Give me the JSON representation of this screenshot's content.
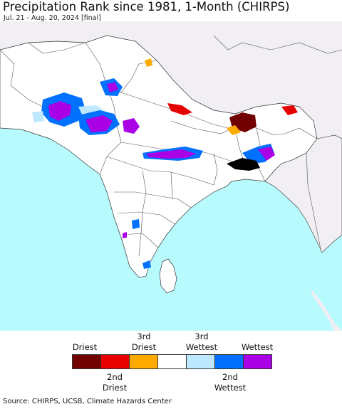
{
  "title": "Precipitation Rank since 1981, 1-Month (CHIRPS)",
  "subtitle": "Jul. 21 - Aug. 20, 2024 [final]",
  "legend": {
    "categories": [
      {
        "label_top": "Driest",
        "label_bottom": "",
        "color": "#730000"
      },
      {
        "label_top": "",
        "label_bottom": "2nd\nDriest",
        "color": "#e60000"
      },
      {
        "label_top": "3rd\nDriest",
        "label_bottom": "",
        "color": "#ffaa00"
      },
      {
        "label_top": "",
        "label_bottom": "",
        "color": "#ffffff"
      },
      {
        "label_top": "3rd\nWettest",
        "label_bottom": "",
        "color": "#bee8ff"
      },
      {
        "label_top": "",
        "label_bottom": "2nd\nWettest",
        "color": "#0070ff"
      },
      {
        "label_top": "Wettest",
        "label_bottom": "",
        "color": "#a900e6"
      }
    ]
  },
  "map": {
    "ocean_color": "#b8fbff",
    "land_color": "#ffffff",
    "outside_color": "#f1eef4"
  },
  "source": "Source: CHIRPS, UCSB, Climate Hazards Center"
}
